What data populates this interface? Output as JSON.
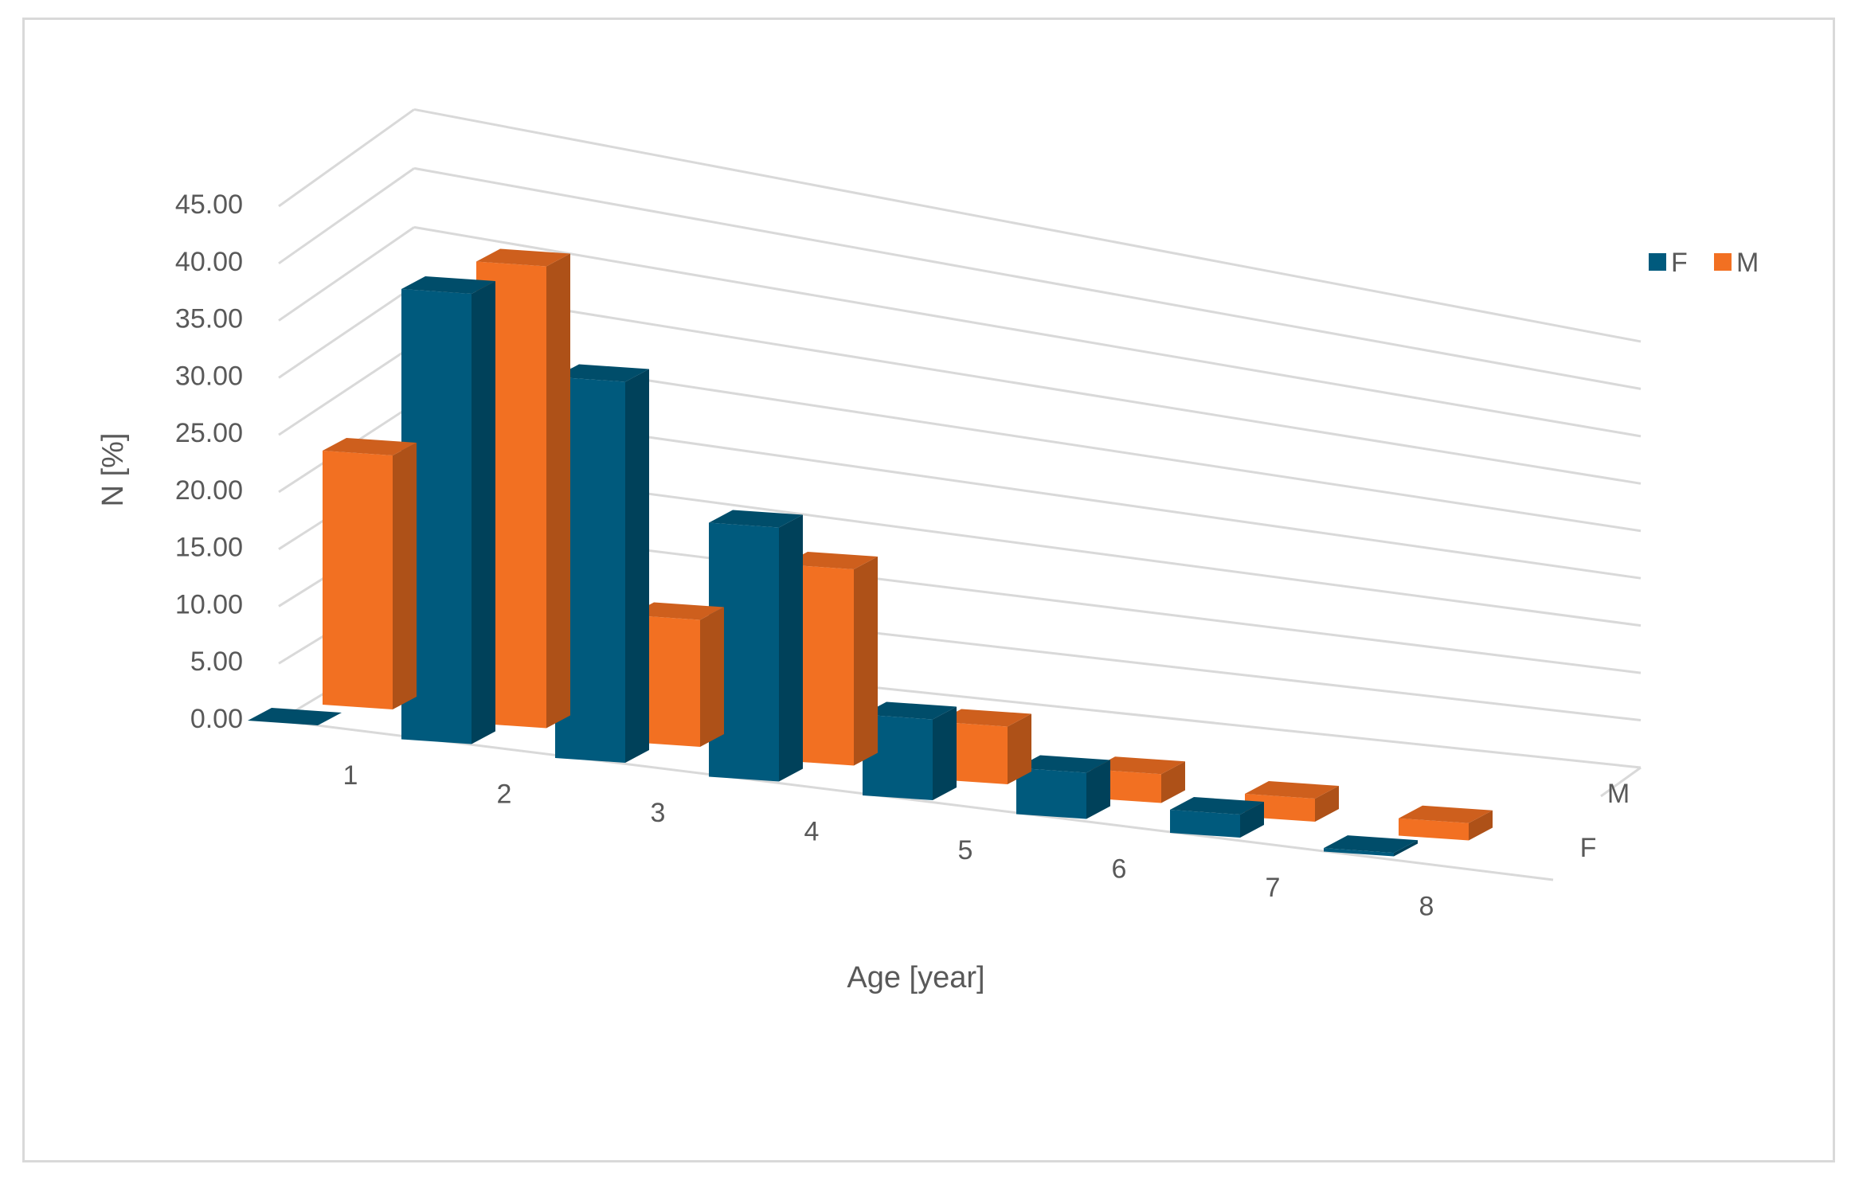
{
  "chart_data": {
    "type": "bar",
    "subtype": "3d-column",
    "title": "",
    "xlabel": "Age [year]",
    "ylabel": "N [%]",
    "categories": [
      "1",
      "2",
      "3",
      "4",
      "5",
      "6",
      "7",
      "8"
    ],
    "depth_labels": [
      "M",
      "F"
    ],
    "ylim": [
      0,
      45
    ],
    "yticks": [
      "0.00",
      "5.00",
      "10.00",
      "15.00",
      "20.00",
      "25.00",
      "30.00",
      "35.00",
      "40.00",
      "45.00"
    ],
    "grid": true,
    "legend_position": "right",
    "series": [
      {
        "name": "F",
        "color": "#005A7D",
        "values": [
          0,
          39,
          33,
          22,
          7,
          4,
          2,
          0.3
        ]
      },
      {
        "name": "M",
        "color": "#F27022",
        "values": [
          22,
          40,
          11,
          17,
          5,
          2.5,
          2,
          1.5
        ]
      }
    ]
  }
}
